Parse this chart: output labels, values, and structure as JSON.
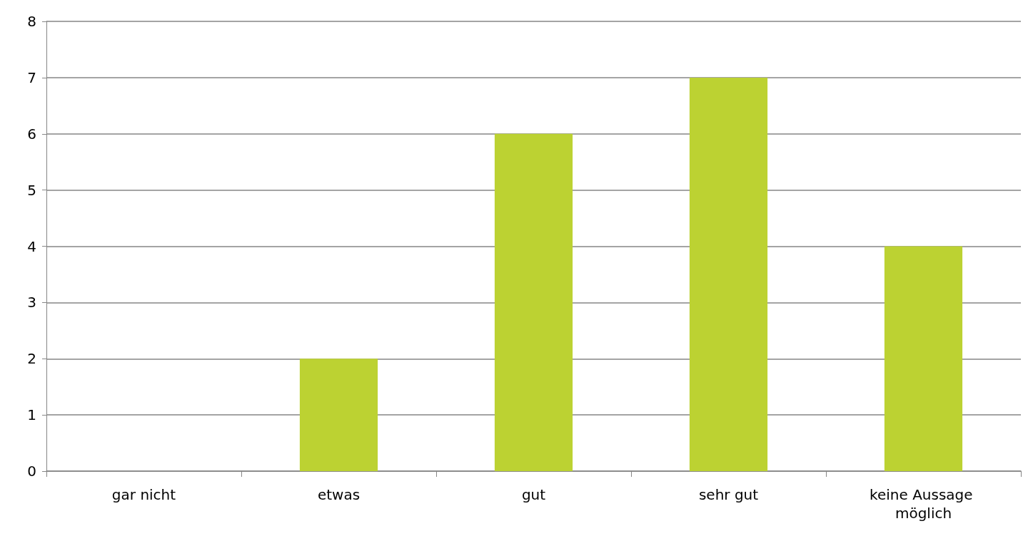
{
  "chart_data": {
    "type": "bar",
    "categories": [
      "gar nicht",
      "etwas",
      "gut",
      "sehr gut",
      "keine Aussage möglich"
    ],
    "values": [
      0,
      2,
      6,
      7,
      4
    ],
    "color": "#bcd232",
    "ylim": [
      0,
      8
    ],
    "yticks": [
      0,
      1,
      2,
      3,
      4,
      5,
      6,
      7,
      8
    ],
    "grid": "y"
  }
}
